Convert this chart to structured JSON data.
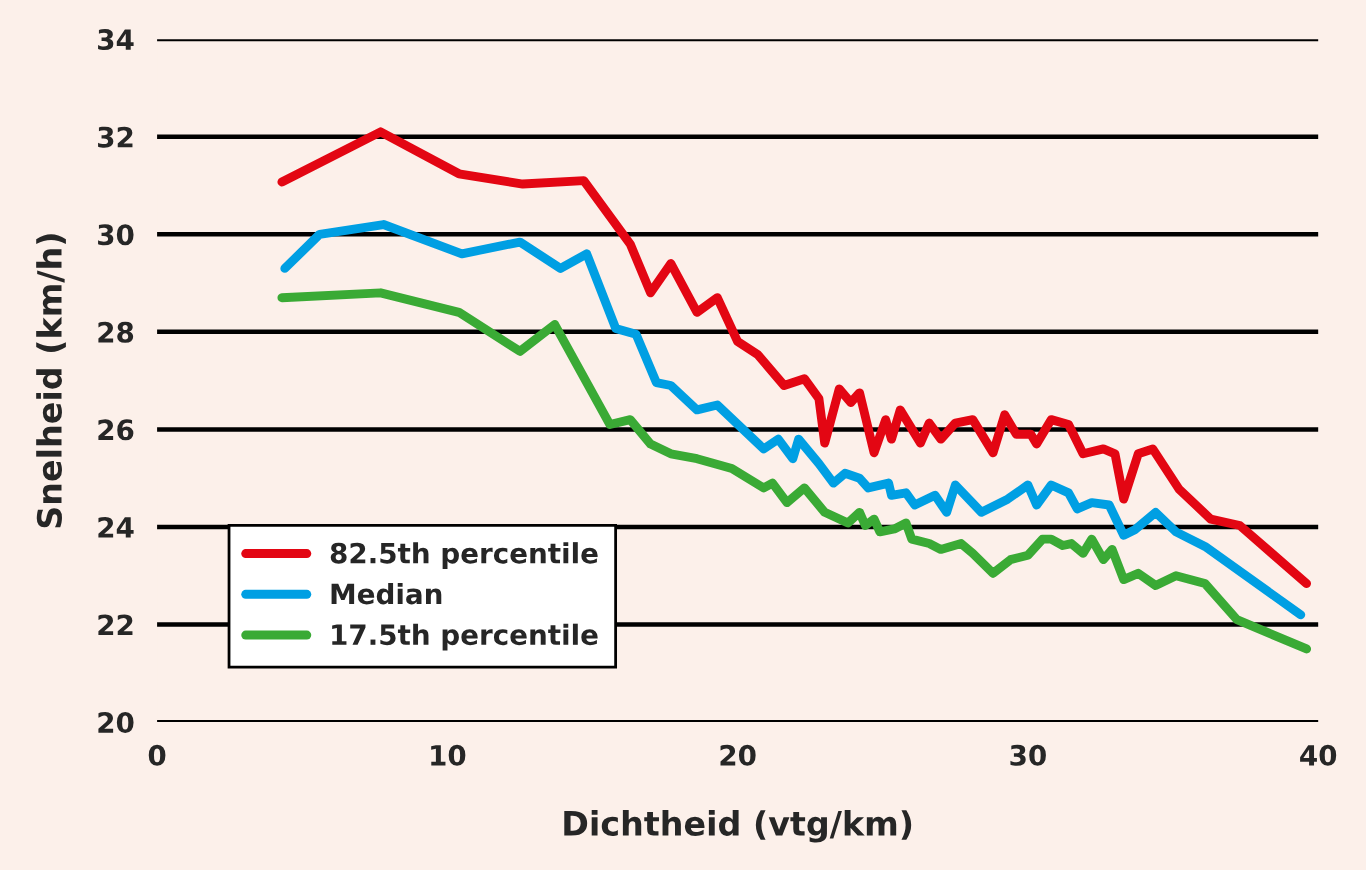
{
  "chart_data": {
    "type": "line",
    "xlabel": "Dichtheid (vtg/km)",
    "ylabel": "Snelheid (km/h)",
    "xlim": [
      0,
      40
    ],
    "xticks": [
      0,
      10,
      20,
      30,
      40
    ],
    "ylim": [
      20,
      34
    ],
    "yticks": [
      20,
      22,
      24,
      26,
      28,
      30,
      32,
      34
    ],
    "grid": "y",
    "legend": "bottom left",
    "line_style": "solid",
    "series": [
      {
        "name": "82.5th percentile",
        "color": "#e30613",
        "x": [
          4.3,
          7.7,
          10.4,
          12.6,
          14.7,
          16.3,
          17.0,
          17.7,
          18.6,
          19.3,
          20.0,
          20.7,
          21.6,
          22.3,
          22.8,
          23.0,
          23.5,
          23.9,
          24.2,
          24.7,
          25.1,
          25.3,
          25.6,
          26.3,
          26.6,
          27.0,
          27.5,
          28.1,
          28.8,
          29.2,
          29.6,
          30.1,
          30.3,
          30.8,
          31.4,
          31.9,
          32.6,
          33.0,
          33.3,
          33.8,
          34.3,
          35.2,
          36.3,
          37.3,
          39.6
        ],
        "values": [
          31.07,
          32.1,
          31.24,
          31.03,
          31.1,
          29.8,
          28.8,
          29.4,
          28.4,
          28.7,
          27.8,
          27.53,
          26.9,
          27.04,
          26.63,
          25.72,
          26.83,
          26.55,
          26.75,
          25.52,
          26.2,
          25.8,
          26.4,
          25.72,
          26.13,
          25.8,
          26.13,
          26.2,
          25.52,
          26.3,
          25.9,
          25.9,
          25.7,
          26.2,
          26.1,
          25.5,
          25.6,
          25.5,
          24.57,
          25.5,
          25.6,
          24.78,
          24.16,
          24.03,
          22.84
        ]
      },
      {
        "name": "Median",
        "color": "#009fe3",
        "x": [
          4.4,
          5.6,
          7.8,
          10.5,
          12.5,
          13.9,
          14.8,
          15.8,
          16.5,
          17.2,
          17.7,
          18.6,
          19.3,
          20.9,
          21.4,
          21.9,
          22.1,
          22.8,
          23.3,
          23.7,
          24.2,
          24.5,
          25.2,
          25.3,
          25.8,
          26.1,
          26.8,
          27.2,
          27.5,
          28.4,
          29.3,
          30.0,
          30.3,
          30.8,
          31.4,
          31.7,
          32.2,
          32.8,
          33.3,
          33.7,
          34.4,
          35.1,
          36.1,
          39.4
        ],
        "values": [
          29.3,
          30.0,
          30.2,
          29.6,
          29.84,
          29.3,
          29.6,
          28.07,
          27.95,
          26.96,
          26.9,
          26.4,
          26.5,
          25.6,
          25.8,
          25.4,
          25.8,
          25.3,
          24.9,
          25.1,
          25.0,
          24.8,
          24.9,
          24.65,
          24.7,
          24.45,
          24.65,
          24.3,
          24.86,
          24.3,
          24.57,
          24.86,
          24.45,
          24.86,
          24.7,
          24.37,
          24.5,
          24.45,
          23.83,
          23.95,
          24.3,
          23.9,
          23.6,
          22.2
        ]
      },
      {
        "name": "17.5th percentile",
        "color": "#3aaa35",
        "x": [
          4.3,
          7.7,
          10.4,
          12.5,
          13.7,
          15.6,
          16.3,
          17.0,
          17.7,
          18.6,
          19.8,
          20.9,
          21.2,
          21.7,
          22.3,
          23.0,
          23.8,
          24.2,
          24.4,
          24.7,
          24.9,
          25.4,
          25.8,
          26.0,
          26.6,
          27.0,
          27.7,
          28.1,
          28.8,
          29.4,
          30.0,
          30.5,
          30.8,
          31.2,
          31.5,
          31.9,
          32.2,
          32.6,
          32.9,
          33.3,
          33.8,
          34.4,
          35.1,
          36.1,
          37.2,
          39.6
        ],
        "values": [
          28.7,
          28.8,
          28.4,
          27.6,
          28.15,
          26.1,
          26.2,
          25.7,
          25.5,
          25.4,
          25.2,
          24.8,
          24.9,
          24.5,
          24.8,
          24.3,
          24.08,
          24.3,
          24.03,
          24.16,
          23.9,
          23.96,
          24.08,
          23.75,
          23.66,
          23.54,
          23.66,
          23.46,
          23.05,
          23.33,
          23.42,
          23.75,
          23.75,
          23.62,
          23.66,
          23.46,
          23.75,
          23.33,
          23.54,
          22.92,
          23.05,
          22.8,
          23.0,
          22.84,
          22.1,
          21.5
        ]
      }
    ]
  }
}
